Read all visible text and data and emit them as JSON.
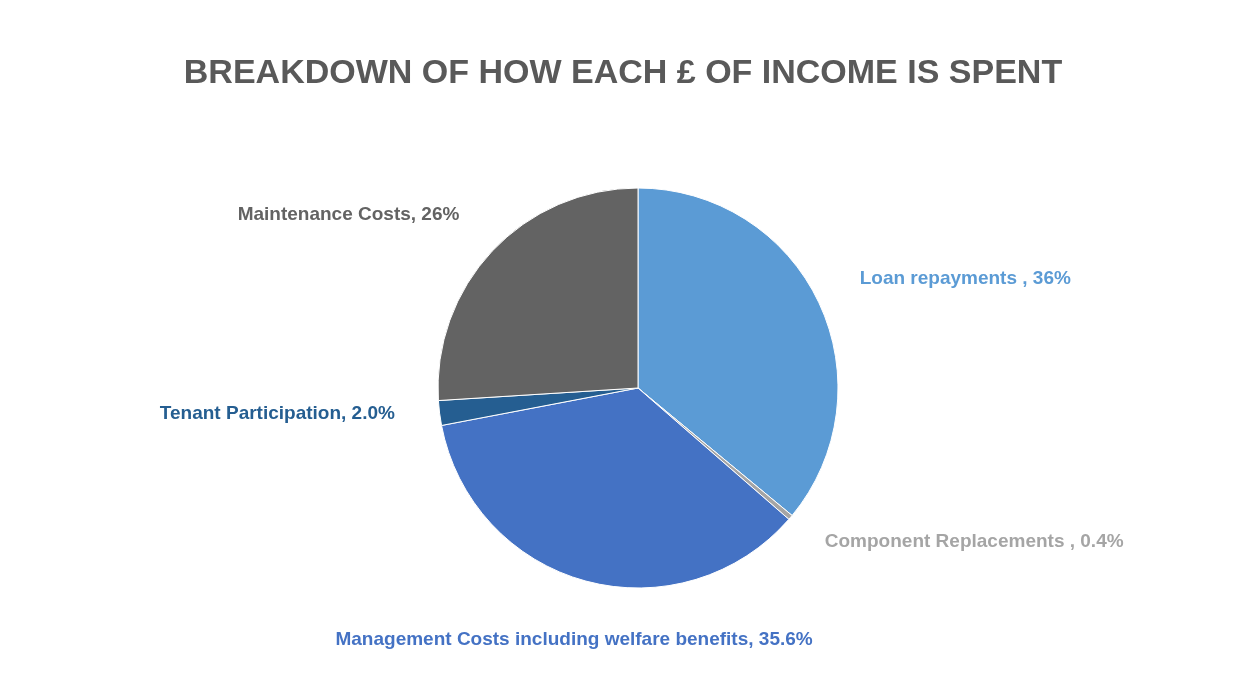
{
  "chart_data": {
    "type": "pie",
    "title": "BREAKDOWN OF HOW EACH £ OF INCOME IS SPENT",
    "categories": [
      "Loan repayments ",
      "Component Replacements ",
      "Management Costs including welfare benefits",
      "Tenant Participation",
      "Maintenance Costs"
    ],
    "values": [
      36,
      0.4,
      35.6,
      2.0,
      26
    ],
    "value_labels": [
      "36%",
      "0.4%",
      "35.6%",
      "2.0%",
      "26%"
    ],
    "colors": [
      "#5b9bd5",
      "#a5a5a5",
      "#4472c4",
      "#255e91",
      "#636363"
    ],
    "legend": false
  }
}
